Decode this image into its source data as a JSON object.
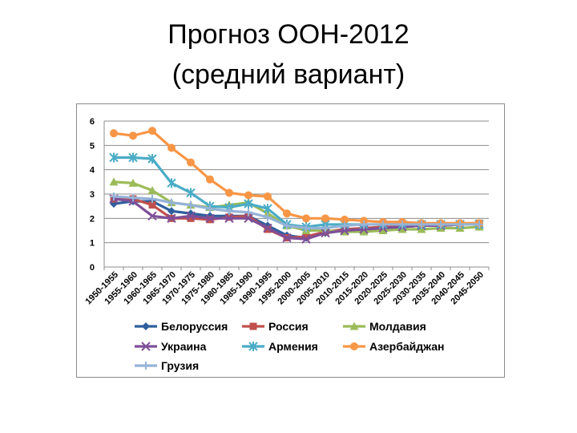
{
  "title_line1": "Прогноз ООН-2012",
  "title_line2": "(средний вариант)",
  "chart_data": {
    "type": "line",
    "x": [
      "1950-1955",
      "1955-1960",
      "1960-1965",
      "1965-1970",
      "1970-1975",
      "1975-1980",
      "1980-1985",
      "1985-1990",
      "1990-1995",
      "1995-2000",
      "2000-2005",
      "2005-2010",
      "2010-2015",
      "2015-2020",
      "2020-2025",
      "2025-2030",
      "2030-2035",
      "2035-2040",
      "2040-2045",
      "2045-2050"
    ],
    "ylim": [
      0,
      6
    ],
    "yticks": [
      0,
      1,
      2,
      3,
      4,
      5,
      6
    ],
    "grid": true,
    "legend_position": "bottom",
    "series": [
      {
        "name": "Белоруссия",
        "color": "#2e5f9e",
        "marker": "diamond",
        "values": [
          2.6,
          2.7,
          2.7,
          2.3,
          2.2,
          2.1,
          2.1,
          2.1,
          1.7,
          1.3,
          1.2,
          1.4,
          1.5,
          1.6,
          1.6,
          1.65,
          1.7,
          1.7,
          1.75,
          1.75
        ]
      },
      {
        "name": "Россия",
        "color": "#c0504d",
        "marker": "square",
        "values": [
          2.8,
          2.8,
          2.55,
          2.0,
          2.0,
          1.95,
          2.05,
          2.1,
          1.55,
          1.2,
          1.25,
          1.45,
          1.55,
          1.6,
          1.65,
          1.65,
          1.7,
          1.7,
          1.75,
          1.8
        ]
      },
      {
        "name": "Молдавия",
        "color": "#9bbb59",
        "marker": "triangle",
        "values": [
          3.5,
          3.45,
          3.15,
          2.65,
          2.55,
          2.45,
          2.55,
          2.65,
          2.2,
          1.7,
          1.5,
          1.5,
          1.45,
          1.45,
          1.5,
          1.55,
          1.55,
          1.6,
          1.6,
          1.65
        ]
      },
      {
        "name": "Украина",
        "color": "#7f4f98",
        "marker": "x",
        "values": [
          2.8,
          2.7,
          2.1,
          2.0,
          2.1,
          2.0,
          2.0,
          2.0,
          1.6,
          1.2,
          1.15,
          1.4,
          1.5,
          1.55,
          1.6,
          1.65,
          1.7,
          1.7,
          1.75,
          1.75
        ]
      },
      {
        "name": "Армения",
        "color": "#4bacc6",
        "marker": "star",
        "values": [
          4.5,
          4.5,
          4.45,
          3.45,
          3.05,
          2.5,
          2.45,
          2.6,
          2.4,
          1.75,
          1.65,
          1.75,
          1.75,
          1.75,
          1.75,
          1.75,
          1.75,
          1.75,
          1.75,
          1.75
        ]
      },
      {
        "name": "Азербайджан",
        "color": "#f79646",
        "marker": "circle",
        "values": [
          5.5,
          5.4,
          5.6,
          4.9,
          4.3,
          3.6,
          3.05,
          2.95,
          2.9,
          2.2,
          2.0,
          2.0,
          1.95,
          1.9,
          1.85,
          1.85,
          1.8,
          1.8,
          1.8,
          1.8
        ]
      },
      {
        "name": "Грузия",
        "color": "#95b3d7",
        "marker": "plus",
        "values": [
          2.9,
          2.85,
          2.8,
          2.65,
          2.55,
          2.4,
          2.3,
          2.25,
          2.05,
          1.7,
          1.6,
          1.6,
          1.7,
          1.75,
          1.75,
          1.75,
          1.75,
          1.75,
          1.75,
          1.75
        ]
      }
    ]
  }
}
